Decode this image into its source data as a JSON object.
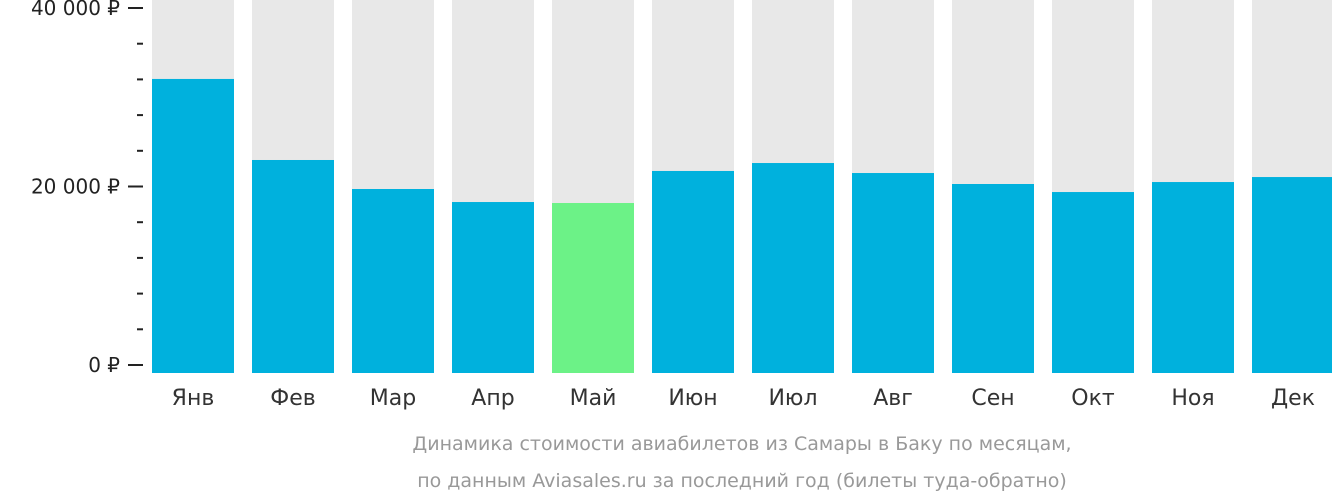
{
  "chart_data": {
    "type": "bar",
    "categories": [
      "Янв",
      "Фев",
      "Мар",
      "Апр",
      "Май",
      "Июн",
      "Июл",
      "Авг",
      "Сен",
      "Окт",
      "Ноя",
      "Дек"
    ],
    "values": [
      32050,
      22970,
      19720,
      18260,
      18150,
      21740,
      22630,
      21510,
      20280,
      19380,
      20500,
      21060
    ],
    "highlight_index": 4,
    "ylim": [
      0,
      40000
    ],
    "yticks": [
      {
        "value": 0,
        "label": "0 ₽"
      },
      {
        "value": 20000,
        "label": "20 000 ₽"
      },
      {
        "value": 40000,
        "label": "40 000 ₽"
      }
    ],
    "minor_tick_step": 4000,
    "title": "",
    "xlabel": "",
    "ylabel": "",
    "caption": [
      "Динамика стоимости авиабилетов из Самары в Баку по месяцам,",
      "по данным Aviasales.ru за последний год (билеты туда-обратно)"
    ],
    "colors": {
      "bar": "#00b1dd",
      "highlight": "#6cf287",
      "background": "#e8e8e8",
      "axis": "#222222",
      "caption": "#999999"
    }
  }
}
